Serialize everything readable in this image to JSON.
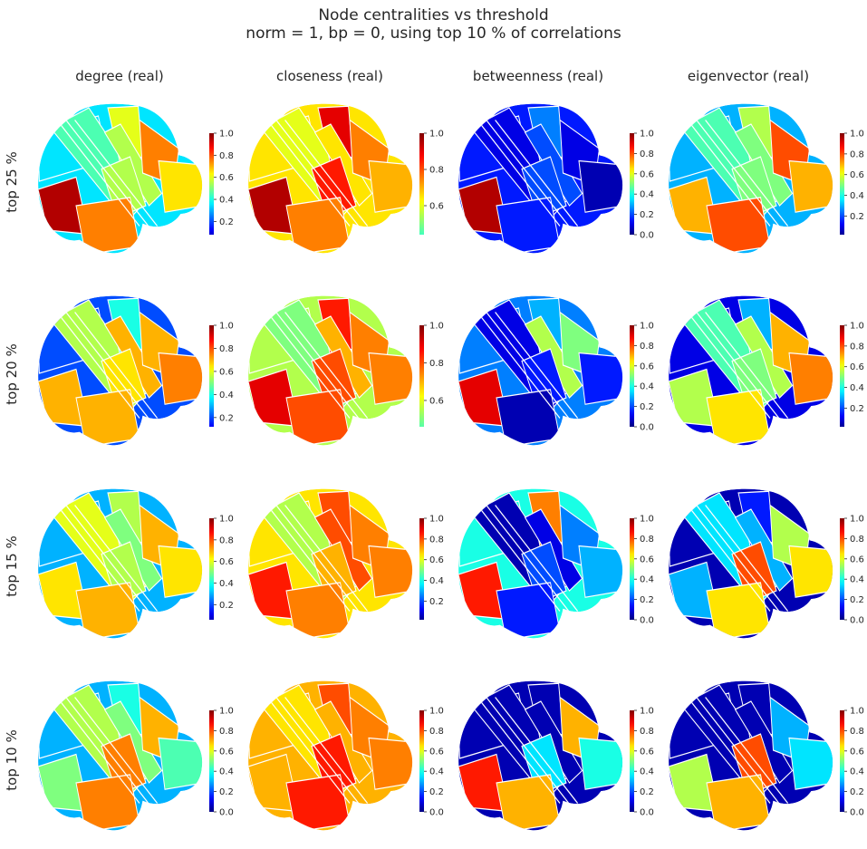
{
  "chart_data": {
    "type": "heatmap",
    "title": "Node centralities vs threshold",
    "subtitle": "norm = 1,   bp = 0,   using top 10 % of correlations",
    "columns": [
      "degree (real)",
      "closeness (real)",
      "betweenness (real)",
      "eigenvector (real)"
    ],
    "rows": [
      "top 25 %",
      "top 20 %",
      "top 15 %",
      "top 10 %"
    ],
    "colormap": "jet",
    "colors": {
      "jet": [
        "#00007f",
        "#0000ff",
        "#007fff",
        "#00ffff",
        "#7fff7f",
        "#ffff00",
        "#ff7f00",
        "#ff0000",
        "#7f0000"
      ],
      "boundary": "#ffffff"
    },
    "colorbars": [
      [
        {
          "min": 0.08,
          "max": 1.0,
          "ticks": [
            "0.2",
            "0.4",
            "0.6",
            "0.8",
            "1.0"
          ]
        },
        {
          "min": 0.44,
          "max": 1.0,
          "ticks": [
            "0.6",
            "0.8",
            "1.0"
          ]
        },
        {
          "min": 0.0,
          "max": 1.0,
          "ticks": [
            "0.0",
            "0.2",
            "0.4",
            "0.6",
            "0.8",
            "1.0"
          ]
        },
        {
          "min": 0.02,
          "max": 1.0,
          "ticks": [
            "0.2",
            "0.4",
            "0.6",
            "0.8",
            "1.0"
          ]
        }
      ],
      [
        {
          "min": 0.12,
          "max": 1.0,
          "ticks": [
            "0.2",
            "0.4",
            "0.6",
            "0.8",
            "1.0"
          ]
        },
        {
          "min": 0.46,
          "max": 1.0,
          "ticks": [
            "0.6",
            "0.8",
            "1.0"
          ]
        },
        {
          "min": 0.0,
          "max": 1.0,
          "ticks": [
            "0.0",
            "0.2",
            "0.4",
            "0.6",
            "0.8",
            "1.0"
          ]
        },
        {
          "min": 0.02,
          "max": 1.0,
          "ticks": [
            "0.2",
            "0.4",
            "0.6",
            "0.8",
            "1.0"
          ]
        }
      ],
      [
        {
          "min": 0.06,
          "max": 1.0,
          "ticks": [
            "0.2",
            "0.4",
            "0.6",
            "0.8",
            "1.0"
          ]
        },
        {
          "min": 0.02,
          "max": 1.0,
          "ticks": [
            "0.2",
            "0.4",
            "0.6",
            "0.8",
            "1.0"
          ]
        },
        {
          "min": 0.0,
          "max": 1.0,
          "ticks": [
            "0.0",
            "0.2",
            "0.4",
            "0.6",
            "0.8",
            "1.0"
          ]
        },
        {
          "min": 0.0,
          "max": 1.0,
          "ticks": [
            "0.0",
            "0.2",
            "0.4",
            "0.6",
            "0.8",
            "1.0"
          ]
        }
      ],
      [
        {
          "min": 0.0,
          "max": 1.0,
          "ticks": [
            "0.0",
            "0.2",
            "0.4",
            "0.6",
            "0.8",
            "1.0"
          ]
        },
        {
          "min": 0.0,
          "max": 1.0,
          "ticks": [
            "0.0",
            "0.2",
            "0.4",
            "0.6",
            "0.8",
            "1.0"
          ]
        },
        {
          "min": 0.0,
          "max": 1.0,
          "ticks": [
            "0.0",
            "0.2",
            "0.4",
            "0.6",
            "0.8",
            "1.0"
          ]
        },
        {
          "min": 0.0,
          "max": 1.0,
          "ticks": [
            "0.0",
            "0.2",
            "0.4",
            "0.6",
            "0.8",
            "1.0"
          ]
        }
      ]
    ],
    "region_values": {
      "regions": [
        "upper-left",
        "diagonal-band",
        "top-center",
        "top-strip",
        "upper-right",
        "right-lobe",
        "center",
        "lower-left",
        "lower-center"
      ],
      "grid": [
        [
          [
            0.35,
            0.45,
            0.6,
            0.55,
            0.75,
            0.65,
            0.55,
            0.95,
            0.75
          ],
          [
            0.65,
            0.6,
            0.9,
            0.65,
            0.75,
            0.7,
            0.85,
            0.95,
            0.75
          ],
          [
            0.15,
            0.1,
            0.25,
            0.2,
            0.1,
            0.05,
            0.2,
            0.95,
            0.15
          ],
          [
            0.3,
            0.45,
            0.55,
            0.5,
            0.8,
            0.7,
            0.5,
            0.7,
            0.8
          ]
        ],
        [
          [
            0.2,
            0.55,
            0.4,
            0.7,
            0.7,
            0.75,
            0.65,
            0.7,
            0.7
          ],
          [
            0.55,
            0.5,
            0.85,
            0.7,
            0.75,
            0.75,
            0.8,
            0.9,
            0.8
          ],
          [
            0.25,
            0.1,
            0.3,
            0.55,
            0.5,
            0.15,
            0.15,
            0.9,
            0.05
          ],
          [
            0.1,
            0.45,
            0.3,
            0.55,
            0.7,
            0.75,
            0.5,
            0.55,
            0.65
          ]
        ],
        [
          [
            0.3,
            0.6,
            0.55,
            0.5,
            0.7,
            0.65,
            0.55,
            0.65,
            0.7
          ],
          [
            0.65,
            0.55,
            0.8,
            0.8,
            0.75,
            0.75,
            0.7,
            0.85,
            0.75
          ],
          [
            0.4,
            0.05,
            0.75,
            0.1,
            0.25,
            0.3,
            0.2,
            0.85,
            0.15
          ],
          [
            0.05,
            0.35,
            0.15,
            0.3,
            0.55,
            0.65,
            0.8,
            0.3,
            0.65
          ]
        ],
        [
          [
            0.3,
            0.55,
            0.4,
            0.5,
            0.7,
            0.45,
            0.75,
            0.5,
            0.75
          ],
          [
            0.7,
            0.65,
            0.8,
            0.7,
            0.75,
            0.75,
            0.85,
            0.7,
            0.85
          ],
          [
            0.05,
            0.05,
            0.05,
            0.05,
            0.7,
            0.4,
            0.35,
            0.85,
            0.7
          ],
          [
            0.05,
            0.05,
            0.05,
            0.05,
            0.3,
            0.35,
            0.8,
            0.55,
            0.7
          ]
        ]
      ]
    }
  }
}
